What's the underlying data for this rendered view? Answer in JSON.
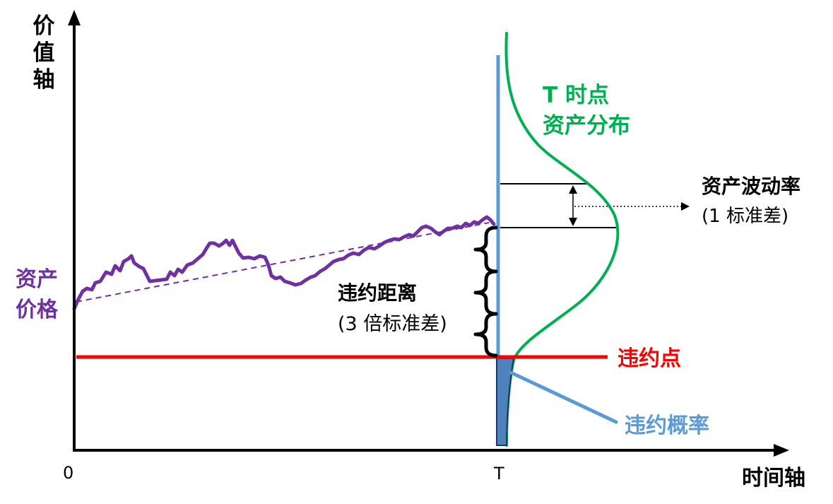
{
  "axes": {
    "y_label": "价值轴",
    "x_label": "时间轴",
    "origin_label": "0",
    "t_label": "T"
  },
  "labels": {
    "asset_price": [
      "资产",
      "价格"
    ],
    "distribution_at_T": [
      "T 时点",
      "资产分布"
    ],
    "asset_volatility": {
      "title": "资产波动率",
      "note": "(1 标准差)"
    },
    "distance_to_default": {
      "title": "违约距离",
      "note": "(3 倍标准差)"
    },
    "default_point": "违约点",
    "default_probability": "违约概率"
  },
  "colors": {
    "axes": "#000000",
    "asset_path": "#7030A0",
    "distribution": "#00B050",
    "default_point": "#FF0000",
    "time_T_line": "#5B9BD5",
    "default_probability": "#5B9BD5",
    "default_probability_area": "#4F81BD"
  }
}
